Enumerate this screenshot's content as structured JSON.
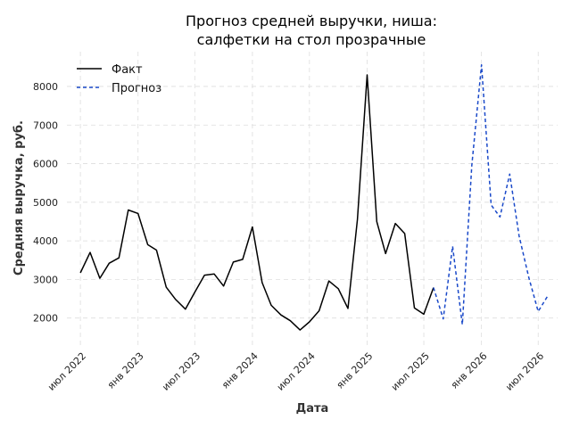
{
  "chart_data": {
    "type": "line",
    "title": [
      "Прогноз средней выручки, ниша:",
      "салфетки на стол прозрачные"
    ],
    "xlabel": "Дата",
    "ylabel": "Средняя выручка, руб.",
    "ylim": [
      1300,
      8900
    ],
    "xlim": [
      "2022-05-19",
      "2026-09-01"
    ],
    "grid": true,
    "legend_position": "top-left",
    "y_ticks": [
      2000,
      3000,
      4000,
      5000,
      6000,
      7000,
      8000
    ],
    "x_ticks": [
      {
        "date": "2022-07-01",
        "label": "июл 2022"
      },
      {
        "date": "2023-01-01",
        "label": "янв 2023"
      },
      {
        "date": "2023-07-01",
        "label": "июл 2023"
      },
      {
        "date": "2024-01-01",
        "label": "янв 2024"
      },
      {
        "date": "2024-07-01",
        "label": "июл 2024"
      },
      {
        "date": "2025-01-01",
        "label": "янв 2025"
      },
      {
        "date": "2025-07-01",
        "label": "июл 2025"
      },
      {
        "date": "2026-01-01",
        "label": "янв 2026"
      },
      {
        "date": "2026-07-01",
        "label": "июл 2026"
      }
    ],
    "series": [
      {
        "name": "Факт",
        "color": "#000000",
        "style": "solid",
        "points": [
          [
            "2022-07-01",
            3170
          ],
          [
            "2022-08-01",
            3700
          ],
          [
            "2022-09-01",
            3030
          ],
          [
            "2022-10-01",
            3420
          ],
          [
            "2022-11-01",
            3560
          ],
          [
            "2022-12-01",
            4800
          ],
          [
            "2023-01-01",
            4710
          ],
          [
            "2023-02-01",
            3900
          ],
          [
            "2023-03-01",
            3760
          ],
          [
            "2023-04-01",
            2800
          ],
          [
            "2023-05-01",
            2480
          ],
          [
            "2023-06-01",
            2230
          ],
          [
            "2023-07-01",
            2670
          ],
          [
            "2023-08-01",
            3110
          ],
          [
            "2023-09-01",
            3140
          ],
          [
            "2023-10-01",
            2830
          ],
          [
            "2023-11-01",
            3450
          ],
          [
            "2023-12-01",
            3520
          ],
          [
            "2024-01-01",
            4360
          ],
          [
            "2024-02-01",
            2920
          ],
          [
            "2024-03-01",
            2330
          ],
          [
            "2024-04-01",
            2080
          ],
          [
            "2024-05-01",
            1930
          ],
          [
            "2024-06-01",
            1690
          ],
          [
            "2024-07-01",
            1900
          ],
          [
            "2024-08-01",
            2190
          ],
          [
            "2024-09-01",
            2960
          ],
          [
            "2024-10-01",
            2760
          ],
          [
            "2024-11-01",
            2250
          ],
          [
            "2024-12-01",
            4550
          ],
          [
            "2025-01-01",
            8300
          ],
          [
            "2025-02-01",
            4500
          ],
          [
            "2025-03-01",
            3670
          ],
          [
            "2025-04-01",
            4450
          ],
          [
            "2025-05-01",
            4190
          ],
          [
            "2025-06-01",
            2260
          ],
          [
            "2025-07-01",
            2100
          ],
          [
            "2025-08-01",
            2790
          ]
        ]
      },
      {
        "name": "Прогноз",
        "color": "#1a49c9",
        "style": "dashed",
        "points": [
          [
            "2025-08-01",
            2790
          ],
          [
            "2025-09-01",
            1980
          ],
          [
            "2025-10-01",
            3860
          ],
          [
            "2025-11-01",
            1830
          ],
          [
            "2025-12-01",
            5950
          ],
          [
            "2026-01-01",
            8560
          ],
          [
            "2026-02-01",
            4930
          ],
          [
            "2026-03-01",
            4620
          ],
          [
            "2026-04-01",
            5730
          ],
          [
            "2026-05-01",
            4130
          ],
          [
            "2026-06-01",
            3050
          ],
          [
            "2026-07-01",
            2170
          ],
          [
            "2026-08-01",
            2580
          ]
        ]
      }
    ]
  }
}
